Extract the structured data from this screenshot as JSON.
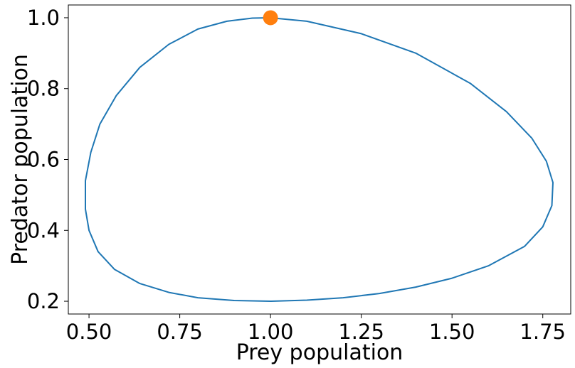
{
  "chart_data": {
    "type": "line",
    "title": "",
    "xlabel": "Prey population",
    "ylabel": "Predator population",
    "xlim": [
      0.443,
      1.827
    ],
    "ylim": [
      0.164,
      1.036
    ],
    "grid": false,
    "xticks": [
      0.5,
      0.75,
      1.0,
      1.25,
      1.5,
      1.75
    ],
    "xtick_labels": [
      "0.50",
      "0.75",
      "1.00",
      "1.25",
      "1.50",
      "1.75"
    ],
    "yticks": [
      0.2,
      0.4,
      0.6,
      0.8,
      1.0
    ],
    "ytick_labels": [
      "0.2",
      "0.4",
      "0.6",
      "0.8",
      "1.0"
    ],
    "series": [
      {
        "color": "#1f77b4",
        "style": "line",
        "x": [
          1.0,
          1.1,
          1.25,
          1.4,
          1.55,
          1.65,
          1.72,
          1.76,
          1.778,
          1.775,
          1.75,
          1.7,
          1.6,
          1.5,
          1.4,
          1.3,
          1.2,
          1.1,
          1.0,
          0.9,
          0.8,
          0.72,
          0.64,
          0.57,
          0.525,
          0.5,
          0.49,
          0.49,
          0.505,
          0.53,
          0.575,
          0.64,
          0.72,
          0.8,
          0.88,
          0.95,
          1.0
        ],
        "y": [
          1.0,
          0.99,
          0.955,
          0.9,
          0.815,
          0.735,
          0.66,
          0.595,
          0.535,
          0.47,
          0.41,
          0.355,
          0.3,
          0.265,
          0.24,
          0.222,
          0.21,
          0.203,
          0.2,
          0.202,
          0.21,
          0.225,
          0.25,
          0.29,
          0.34,
          0.4,
          0.46,
          0.54,
          0.62,
          0.7,
          0.78,
          0.86,
          0.925,
          0.968,
          0.99,
          0.999,
          1.0
        ]
      },
      {
        "color": "#ff7f0e",
        "style": "marker",
        "x": [
          1.0
        ],
        "y": [
          1.0
        ]
      }
    ]
  }
}
